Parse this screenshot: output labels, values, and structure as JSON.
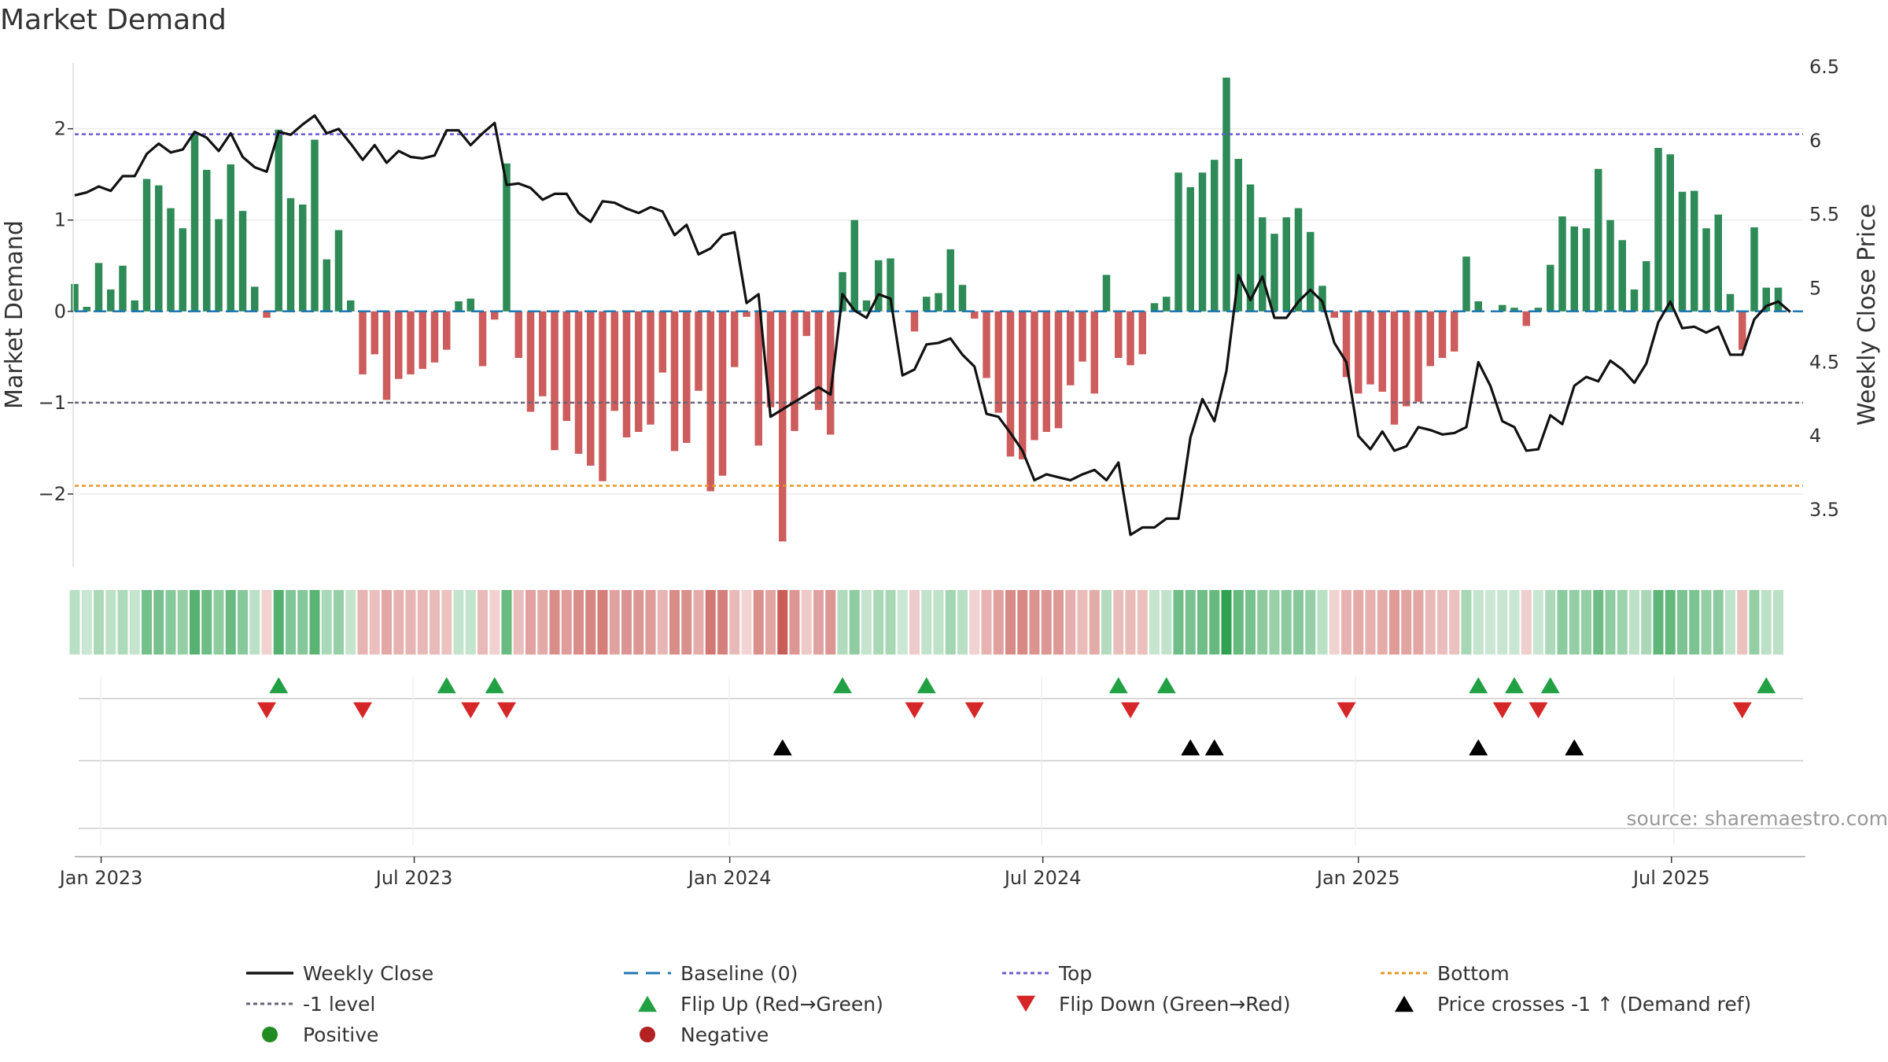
{
  "chart_data": {
    "type": "bar",
    "title": "Market Demand",
    "ylabel": "Market Demand",
    "y2label": "Weekly Close Price",
    "ylim": [
      -2.75,
      2.85
    ],
    "y2lim": [
      3.25,
      6.5
    ],
    "yticks": [
      -2,
      -1,
      0,
      1,
      2
    ],
    "ytick_labels": [
      "−2",
      "−1",
      "0",
      "1",
      "2"
    ],
    "y2ticks": [
      3.5,
      4,
      4.5,
      5,
      5.5,
      6,
      6.5
    ],
    "y2tick_labels": [
      "3.5",
      "4",
      "4.5",
      "5",
      "5.5",
      "6",
      "6.5"
    ],
    "x_range": [
      0,
      145
    ],
    "x_ticks": [
      {
        "label": "Jan 2023",
        "x": 2.2
      },
      {
        "label": "Jul 2023",
        "x": 28.3
      },
      {
        "label": "Jan 2024",
        "x": 54.6
      },
      {
        "label": "Jul 2024",
        "x": 80.7
      },
      {
        "label": "Jan 2025",
        "x": 107.0
      },
      {
        "label": "Jul 2025",
        "x": 133.1
      }
    ],
    "levels": {
      "top": 1.94,
      "minus_one": -1.0,
      "bottom": -1.91,
      "baseline": 0
    },
    "demand": [
      0.3,
      0.05,
      0.53,
      0.24,
      0.5,
      0.12,
      1.45,
      1.38,
      1.13,
      0.91,
      1.95,
      1.55,
      1.01,
      1.61,
      1.1,
      0.27,
      -0.07,
      1.99,
      1.24,
      1.17,
      1.88,
      0.57,
      0.89,
      0.12,
      -0.69,
      -0.47,
      -0.97,
      -0.74,
      -0.69,
      -0.63,
      -0.56,
      -0.42,
      0.11,
      0.14,
      -0.6,
      -0.09,
      1.62,
      -0.51,
      -1.1,
      -0.93,
      -1.52,
      -1.2,
      -1.56,
      -1.69,
      -1.86,
      -1.09,
      -1.38,
      -1.32,
      -1.24,
      -0.67,
      -1.53,
      -1.44,
      -0.87,
      -1.97,
      -1.8,
      -0.61,
      -0.06,
      -1.47,
      -1.05,
      -2.52,
      -1.31,
      -0.27,
      -1.08,
      -1.35,
      0.43,
      1.0,
      0.12,
      0.56,
      0.58,
      0.0,
      -0.22,
      0.16,
      0.2,
      0.68,
      0.29,
      -0.08,
      -0.73,
      -1.11,
      -1.59,
      -1.62,
      -1.41,
      -1.32,
      -1.28,
      -0.81,
      -0.55,
      -0.9,
      0.4,
      -0.51,
      -0.59,
      -0.47,
      0.09,
      0.16,
      1.52,
      1.36,
      1.52,
      1.66,
      2.56,
      1.67,
      1.39,
      1.03,
      0.85,
      1.03,
      1.13,
      0.87,
      0.28,
      -0.07,
      -0.72,
      -0.9,
      -0.8,
      -0.88,
      -1.24,
      -1.04,
      -0.99,
      -0.6,
      -0.51,
      -0.44,
      0.6,
      0.11,
      0.0,
      0.07,
      0.04,
      -0.16,
      0.04,
      0.51,
      1.04,
      0.93,
      0.91,
      1.56,
      1.0,
      0.78,
      0.24,
      0.55,
      1.79,
      1.72,
      1.31,
      1.32,
      0.91,
      1.06,
      0.19,
      -0.42,
      0.92,
      0.26,
      0.26
    ],
    "weekly_close": [
      5.63,
      5.65,
      5.69,
      5.66,
      5.76,
      5.76,
      5.91,
      5.98,
      5.92,
      5.94,
      6.06,
      6.02,
      5.93,
      6.05,
      5.89,
      5.82,
      5.79,
      6.06,
      6.04,
      6.11,
      6.17,
      6.05,
      6.08,
      5.98,
      5.87,
      5.97,
      5.85,
      5.93,
      5.89,
      5.88,
      5.9,
      6.07,
      6.07,
      5.97,
      6.05,
      6.12,
      5.7,
      5.71,
      5.68,
      5.6,
      5.64,
      5.64,
      5.51,
      5.45,
      5.59,
      5.58,
      5.54,
      5.51,
      5.55,
      5.52,
      5.36,
      5.43,
      5.23,
      5.27,
      5.36,
      5.38,
      4.9,
      4.96,
      4.13,
      4.18,
      4.23,
      4.28,
      4.33,
      4.28,
      4.96,
      4.85,
      4.8,
      4.96,
      4.93,
      4.41,
      4.45,
      4.62,
      4.63,
      4.66,
      4.55,
      4.47,
      4.15,
      4.13,
      4.02,
      3.9,
      3.7,
      3.74,
      3.72,
      3.7,
      3.74,
      3.77,
      3.7,
      3.82,
      3.33,
      3.38,
      3.38,
      3.44,
      3.44,
      3.99,
      4.25,
      4.1,
      4.44,
      5.09,
      4.92,
      5.08,
      4.8,
      4.8,
      4.91,
      4.99,
      4.91,
      4.63,
      4.5,
      4.0,
      3.91,
      4.03,
      3.9,
      3.93,
      4.06,
      4.04,
      4.01,
      4.02,
      4.06,
      4.5,
      4.34,
      4.1,
      4.06,
      3.9,
      3.91,
      4.14,
      4.08,
      4.34,
      4.4,
      4.37,
      4.51,
      4.45,
      4.36,
      4.49,
      4.77,
      4.91,
      4.73,
      4.74,
      4.7,
      4.74,
      4.55,
      4.55,
      4.79,
      4.88,
      4.91,
      4.84
    ],
    "flip_up_idx": [
      17,
      31,
      35,
      64,
      71,
      87,
      91,
      117,
      120,
      123,
      141
    ],
    "flip_down_idx": [
      16,
      24,
      33,
      36,
      70,
      75,
      88,
      106,
      119,
      122,
      139
    ],
    "price_cross_idx": [
      59,
      93,
      95,
      117,
      125
    ],
    "legend": [
      {
        "key": "weekly_close",
        "label": "Weekly Close"
      },
      {
        "key": "baseline",
        "label": "Baseline (0)"
      },
      {
        "key": "top",
        "label": "Top"
      },
      {
        "key": "bottom",
        "label": "Bottom"
      },
      {
        "key": "minus_one",
        "label": "-1 level"
      },
      {
        "key": "flip_up",
        "label": "Flip Up (Red→Green)"
      },
      {
        "key": "flip_down",
        "label": "Flip Down (Green→Red)"
      },
      {
        "key": "price_cross",
        "label": "Price crosses -1 ↑ (Demand ref)"
      },
      {
        "key": "positive",
        "label": "Positive"
      },
      {
        "key": "negative",
        "label": "Negative"
      }
    ],
    "source": "source: sharemaestro.com"
  },
  "colors": {
    "positive_bar": "#2e8b57",
    "negative_bar": "#cd5c5c",
    "weekly_close": "#111111",
    "baseline": "#1f77b4",
    "top": "#6a5acd",
    "bottom": "#e69524",
    "minus_one": "#666677",
    "flip_up": "#22a044",
    "flip_down": "#d62728",
    "price_cross": "#000000",
    "positive_dot": "#228b22",
    "negative_dot": "#b22222"
  }
}
